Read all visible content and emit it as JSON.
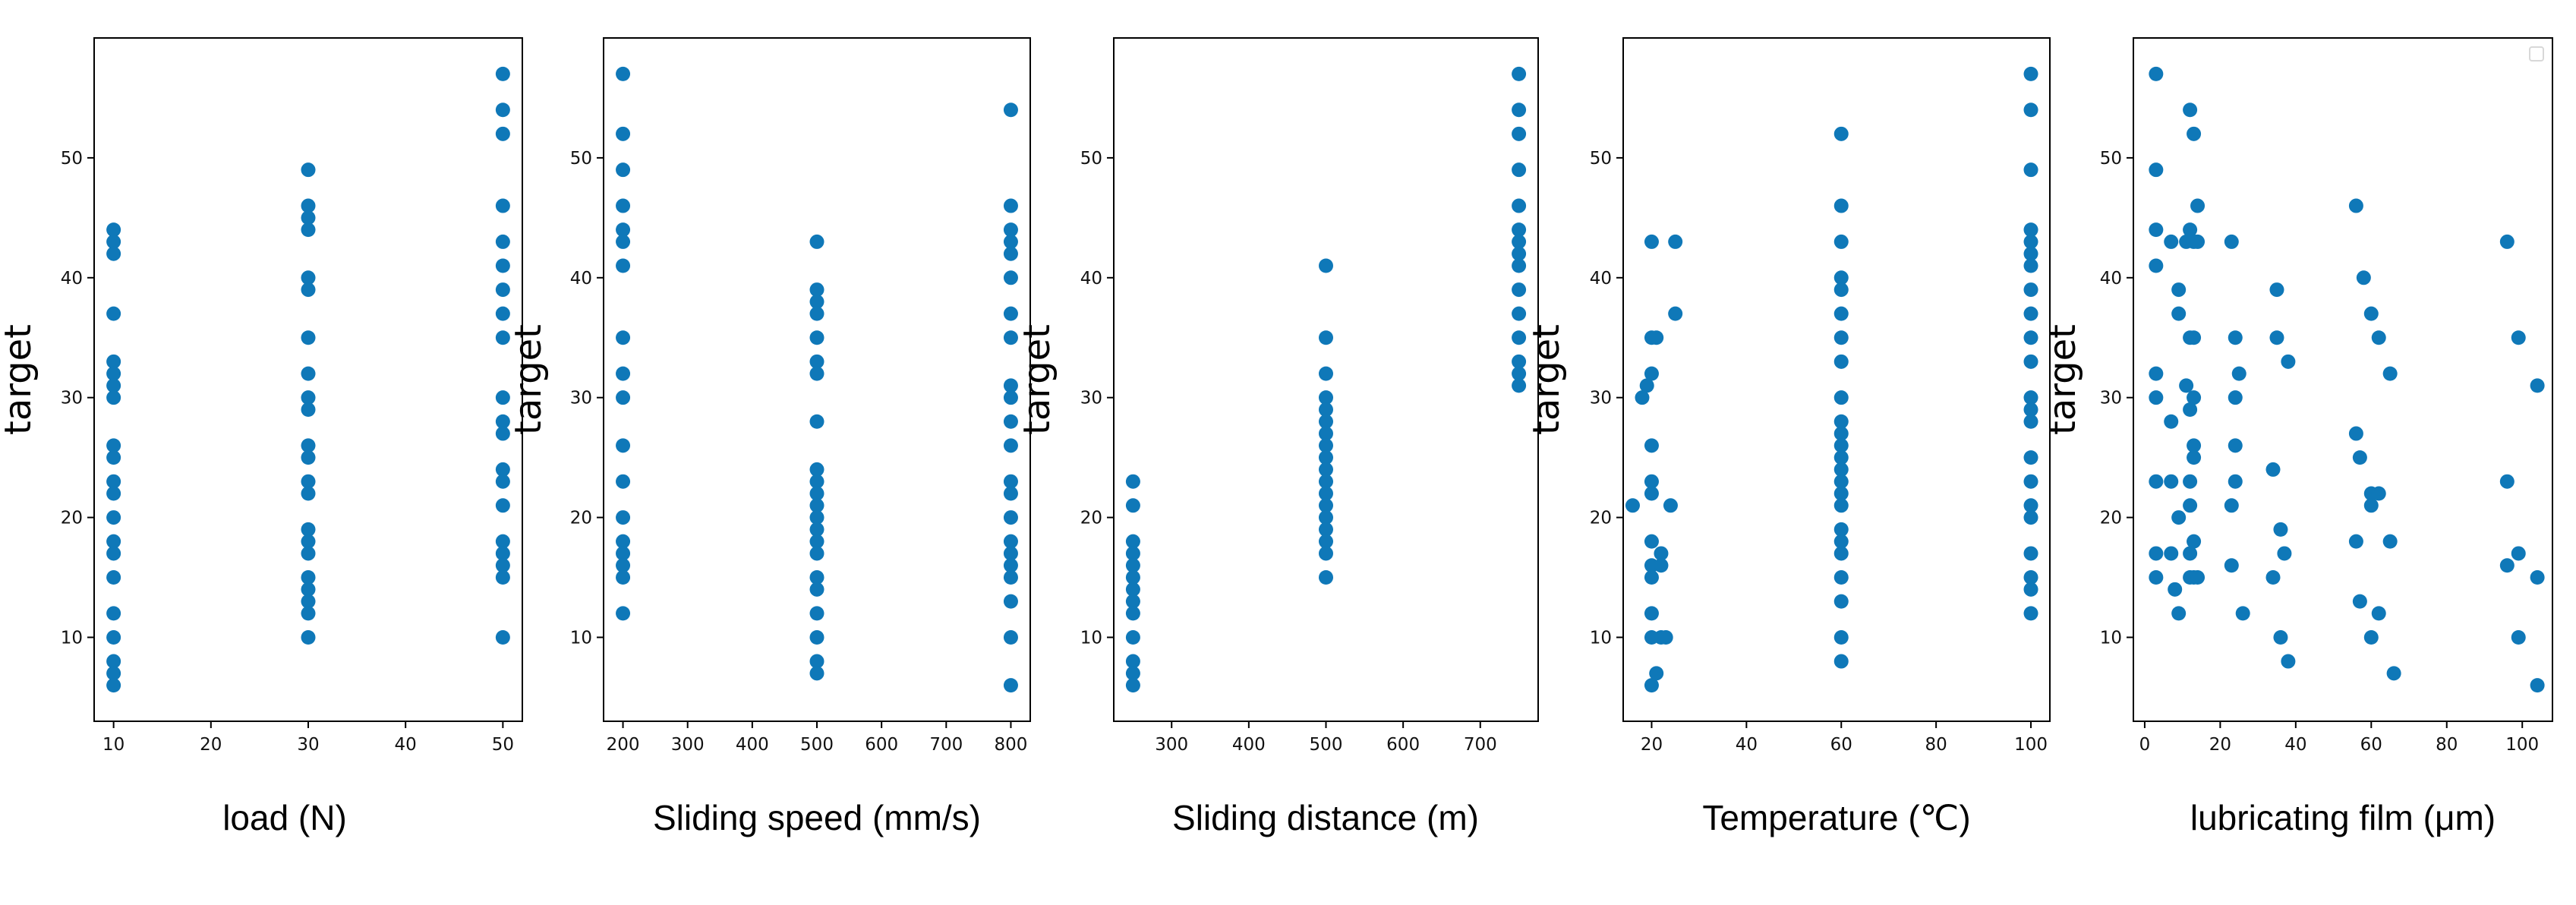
{
  "chart_data": [
    {
      "type": "scatter",
      "xlabel": "load (N)",
      "ylabel": "target",
      "xlim": [
        8,
        52
      ],
      "ylim": [
        3,
        60
      ],
      "xticks": [
        10,
        20,
        30,
        40,
        50
      ],
      "yticks": [
        10,
        20,
        30,
        40,
        50
      ],
      "color": "#0f78b8",
      "points": [
        [
          10,
          44
        ],
        [
          10,
          43
        ],
        [
          10,
          42
        ],
        [
          10,
          37
        ],
        [
          10,
          33
        ],
        [
          10,
          32
        ],
        [
          10,
          31
        ],
        [
          10,
          30
        ],
        [
          10,
          26
        ],
        [
          10,
          25
        ],
        [
          10,
          23
        ],
        [
          10,
          22
        ],
        [
          10,
          20
        ],
        [
          10,
          18
        ],
        [
          10,
          17
        ],
        [
          10,
          15
        ],
        [
          10,
          12
        ],
        [
          10,
          10
        ],
        [
          10,
          8
        ],
        [
          10,
          7
        ],
        [
          10,
          6
        ],
        [
          30,
          49
        ],
        [
          30,
          46
        ],
        [
          30,
          45
        ],
        [
          30,
          44
        ],
        [
          30,
          40
        ],
        [
          30,
          39
        ],
        [
          30,
          35
        ],
        [
          30,
          32
        ],
        [
          30,
          30
        ],
        [
          30,
          29
        ],
        [
          30,
          26
        ],
        [
          30,
          25
        ],
        [
          30,
          23
        ],
        [
          30,
          22
        ],
        [
          30,
          19
        ],
        [
          30,
          18
        ],
        [
          30,
          17
        ],
        [
          30,
          15
        ],
        [
          30,
          14
        ],
        [
          30,
          13
        ],
        [
          30,
          12
        ],
        [
          30,
          10
        ],
        [
          50,
          57
        ],
        [
          50,
          54
        ],
        [
          50,
          52
        ],
        [
          50,
          46
        ],
        [
          50,
          43
        ],
        [
          50,
          41
        ],
        [
          50,
          39
        ],
        [
          50,
          37
        ],
        [
          50,
          35
        ],
        [
          50,
          30
        ],
        [
          50,
          28
        ],
        [
          50,
          27
        ],
        [
          50,
          24
        ],
        [
          50,
          23
        ],
        [
          50,
          21
        ],
        [
          50,
          18
        ],
        [
          50,
          17
        ],
        [
          50,
          16
        ],
        [
          50,
          15
        ],
        [
          50,
          10
        ]
      ]
    },
    {
      "type": "scatter",
      "xlabel": "Sliding speed (mm/s)",
      "ylabel": "target",
      "xlim": [
        170,
        830
      ],
      "ylim": [
        3,
        60
      ],
      "xticks": [
        200,
        300,
        400,
        500,
        600,
        700,
        800
      ],
      "yticks": [
        10,
        20,
        30,
        40,
        50
      ],
      "color": "#0f78b8",
      "points": [
        [
          200,
          57
        ],
        [
          200,
          52
        ],
        [
          200,
          49
        ],
        [
          200,
          46
        ],
        [
          200,
          44
        ],
        [
          200,
          43
        ],
        [
          200,
          41
        ],
        [
          200,
          35
        ],
        [
          200,
          32
        ],
        [
          200,
          30
        ],
        [
          200,
          26
        ],
        [
          200,
          23
        ],
        [
          200,
          20
        ],
        [
          200,
          18
        ],
        [
          200,
          17
        ],
        [
          200,
          16
        ],
        [
          200,
          15
        ],
        [
          200,
          12
        ],
        [
          500,
          43
        ],
        [
          500,
          39
        ],
        [
          500,
          38
        ],
        [
          500,
          37
        ],
        [
          500,
          35
        ],
        [
          500,
          33
        ],
        [
          500,
          32
        ],
        [
          500,
          28
        ],
        [
          500,
          24
        ],
        [
          500,
          23
        ],
        [
          500,
          22
        ],
        [
          500,
          21
        ],
        [
          500,
          20
        ],
        [
          500,
          19
        ],
        [
          500,
          18
        ],
        [
          500,
          17
        ],
        [
          500,
          15
        ],
        [
          500,
          14
        ],
        [
          500,
          12
        ],
        [
          500,
          10
        ],
        [
          500,
          8
        ],
        [
          500,
          7
        ],
        [
          800,
          54
        ],
        [
          800,
          46
        ],
        [
          800,
          44
        ],
        [
          800,
          43
        ],
        [
          800,
          42
        ],
        [
          800,
          40
        ],
        [
          800,
          37
        ],
        [
          800,
          35
        ],
        [
          800,
          31
        ],
        [
          800,
          30
        ],
        [
          800,
          28
        ],
        [
          800,
          26
        ],
        [
          800,
          23
        ],
        [
          800,
          22
        ],
        [
          800,
          20
        ],
        [
          800,
          18
        ],
        [
          800,
          17
        ],
        [
          800,
          16
        ],
        [
          800,
          15
        ],
        [
          800,
          13
        ],
        [
          800,
          10
        ],
        [
          800,
          6
        ]
      ]
    },
    {
      "type": "scatter",
      "xlabel": "Sliding distance (m)",
      "ylabel": "target",
      "xlim": [
        225,
        775
      ],
      "ylim": [
        3,
        60
      ],
      "xticks": [
        300,
        400,
        500,
        600,
        700
      ],
      "yticks": [
        10,
        20,
        30,
        40,
        50
      ],
      "color": "#0f78b8",
      "points": [
        [
          250,
          23
        ],
        [
          250,
          21
        ],
        [
          250,
          18
        ],
        [
          250,
          17
        ],
        [
          250,
          16
        ],
        [
          250,
          15
        ],
        [
          250,
          14
        ],
        [
          250,
          13
        ],
        [
          250,
          12
        ],
        [
          250,
          10
        ],
        [
          250,
          8
        ],
        [
          250,
          7
        ],
        [
          250,
          6
        ],
        [
          500,
          41
        ],
        [
          500,
          35
        ],
        [
          500,
          32
        ],
        [
          500,
          30
        ],
        [
          500,
          29
        ],
        [
          500,
          28
        ],
        [
          500,
          27
        ],
        [
          500,
          26
        ],
        [
          500,
          25
        ],
        [
          500,
          24
        ],
        [
          500,
          23
        ],
        [
          500,
          22
        ],
        [
          500,
          21
        ],
        [
          500,
          20
        ],
        [
          500,
          19
        ],
        [
          500,
          18
        ],
        [
          500,
          17
        ],
        [
          500,
          15
        ],
        [
          750,
          57
        ],
        [
          750,
          54
        ],
        [
          750,
          52
        ],
        [
          750,
          49
        ],
        [
          750,
          46
        ],
        [
          750,
          44
        ],
        [
          750,
          43
        ],
        [
          750,
          42
        ],
        [
          750,
          41
        ],
        [
          750,
          39
        ],
        [
          750,
          37
        ],
        [
          750,
          35
        ],
        [
          750,
          33
        ],
        [
          750,
          32
        ],
        [
          750,
          31
        ]
      ]
    },
    {
      "type": "scatter",
      "xlabel": "Temperature (℃)",
      "ylabel": "target",
      "xlim": [
        14,
        104
      ],
      "ylim": [
        3,
        60
      ],
      "xticks": [
        20,
        40,
        60,
        80,
        100
      ],
      "yticks": [
        10,
        20,
        30,
        40,
        50
      ],
      "color": "#0f78b8",
      "points": [
        [
          16,
          21
        ],
        [
          18,
          30
        ],
        [
          19,
          31
        ],
        [
          20,
          43
        ],
        [
          20,
          35
        ],
        [
          20,
          32
        ],
        [
          20,
          26
        ],
        [
          20,
          23
        ],
        [
          20,
          22
        ],
        [
          20,
          18
        ],
        [
          20,
          16
        ],
        [
          20,
          15
        ],
        [
          20,
          12
        ],
        [
          20,
          10
        ],
        [
          20,
          6
        ],
        [
          21,
          35
        ],
        [
          21,
          7
        ],
        [
          22,
          17
        ],
        [
          22,
          16
        ],
        [
          22,
          10
        ],
        [
          23,
          10
        ],
        [
          24,
          21
        ],
        [
          25,
          43
        ],
        [
          25,
          37
        ],
        [
          60,
          52
        ],
        [
          60,
          46
        ],
        [
          60,
          43
        ],
        [
          60,
          40
        ],
        [
          60,
          39
        ],
        [
          60,
          37
        ],
        [
          60,
          35
        ],
        [
          60,
          33
        ],
        [
          60,
          30
        ],
        [
          60,
          28
        ],
        [
          60,
          27
        ],
        [
          60,
          26
        ],
        [
          60,
          25
        ],
        [
          60,
          24
        ],
        [
          60,
          23
        ],
        [
          60,
          22
        ],
        [
          60,
          21
        ],
        [
          60,
          19
        ],
        [
          60,
          18
        ],
        [
          60,
          17
        ],
        [
          60,
          15
        ],
        [
          60,
          13
        ],
        [
          60,
          10
        ],
        [
          60,
          8
        ],
        [
          100,
          57
        ],
        [
          100,
          54
        ],
        [
          100,
          49
        ],
        [
          100,
          44
        ],
        [
          100,
          43
        ],
        [
          100,
          42
        ],
        [
          100,
          41
        ],
        [
          100,
          39
        ],
        [
          100,
          37
        ],
        [
          100,
          35
        ],
        [
          100,
          33
        ],
        [
          100,
          30
        ],
        [
          100,
          29
        ],
        [
          100,
          28
        ],
        [
          100,
          25
        ],
        [
          100,
          23
        ],
        [
          100,
          21
        ],
        [
          100,
          20
        ],
        [
          100,
          17
        ],
        [
          100,
          15
        ],
        [
          100,
          14
        ],
        [
          100,
          12
        ]
      ]
    },
    {
      "type": "scatter",
      "xlabel": "lubricating film (μm)",
      "ylabel": "target",
      "xlim": [
        -3,
        108
      ],
      "ylim": [
        3,
        60
      ],
      "xticks": [
        0,
        20,
        40,
        60,
        80,
        100
      ],
      "yticks": [
        10,
        20,
        30,
        40,
        50
      ],
      "color": "#0f78b8",
      "legend": "top-right",
      "points": [
        [
          3,
          57
        ],
        [
          3,
          49
        ],
        [
          3,
          44
        ],
        [
          3,
          41
        ],
        [
          3,
          32
        ],
        [
          3,
          30
        ],
        [
          3,
          23
        ],
        [
          3,
          17
        ],
        [
          3,
          15
        ],
        [
          7,
          43
        ],
        [
          7,
          28
        ],
        [
          7,
          23
        ],
        [
          7,
          17
        ],
        [
          8,
          14
        ],
        [
          9,
          39
        ],
        [
          9,
          37
        ],
        [
          9,
          20
        ],
        [
          9,
          12
        ],
        [
          11,
          43
        ],
        [
          11,
          31
        ],
        [
          12,
          54
        ],
        [
          12,
          44
        ],
        [
          12,
          35
        ],
        [
          12,
          29
        ],
        [
          12,
          23
        ],
        [
          12,
          21
        ],
        [
          12,
          17
        ],
        [
          12,
          15
        ],
        [
          13,
          52
        ],
        [
          13,
          43
        ],
        [
          13,
          35
        ],
        [
          13,
          30
        ],
        [
          13,
          26
        ],
        [
          13,
          25
        ],
        [
          13,
          18
        ],
        [
          13,
          15
        ],
        [
          14,
          46
        ],
        [
          14,
          43
        ],
        [
          14,
          15
        ],
        [
          23,
          43
        ],
        [
          23,
          21
        ],
        [
          23,
          16
        ],
        [
          24,
          35
        ],
        [
          24,
          30
        ],
        [
          24,
          26
        ],
        [
          24,
          23
        ],
        [
          25,
          32
        ],
        [
          26,
          12
        ],
        [
          34,
          24
        ],
        [
          34,
          15
        ],
        [
          35,
          39
        ],
        [
          35,
          35
        ],
        [
          36,
          19
        ],
        [
          36,
          10
        ],
        [
          37,
          17
        ],
        [
          38,
          33
        ],
        [
          38,
          8
        ],
        [
          56,
          46
        ],
        [
          56,
          27
        ],
        [
          56,
          18
        ],
        [
          57,
          25
        ],
        [
          57,
          13
        ],
        [
          58,
          40
        ],
        [
          60,
          37
        ],
        [
          60,
          22
        ],
        [
          60,
          21
        ],
        [
          60,
          10
        ],
        [
          62,
          35
        ],
        [
          62,
          22
        ],
        [
          62,
          12
        ],
        [
          65,
          32
        ],
        [
          65,
          18
        ],
        [
          66,
          7
        ],
        [
          96,
          43
        ],
        [
          96,
          23
        ],
        [
          96,
          16
        ],
        [
          99,
          35
        ],
        [
          99,
          17
        ],
        [
          99,
          10
        ],
        [
          104,
          31
        ],
        [
          104,
          15
        ],
        [
          104,
          6
        ]
      ]
    }
  ]
}
